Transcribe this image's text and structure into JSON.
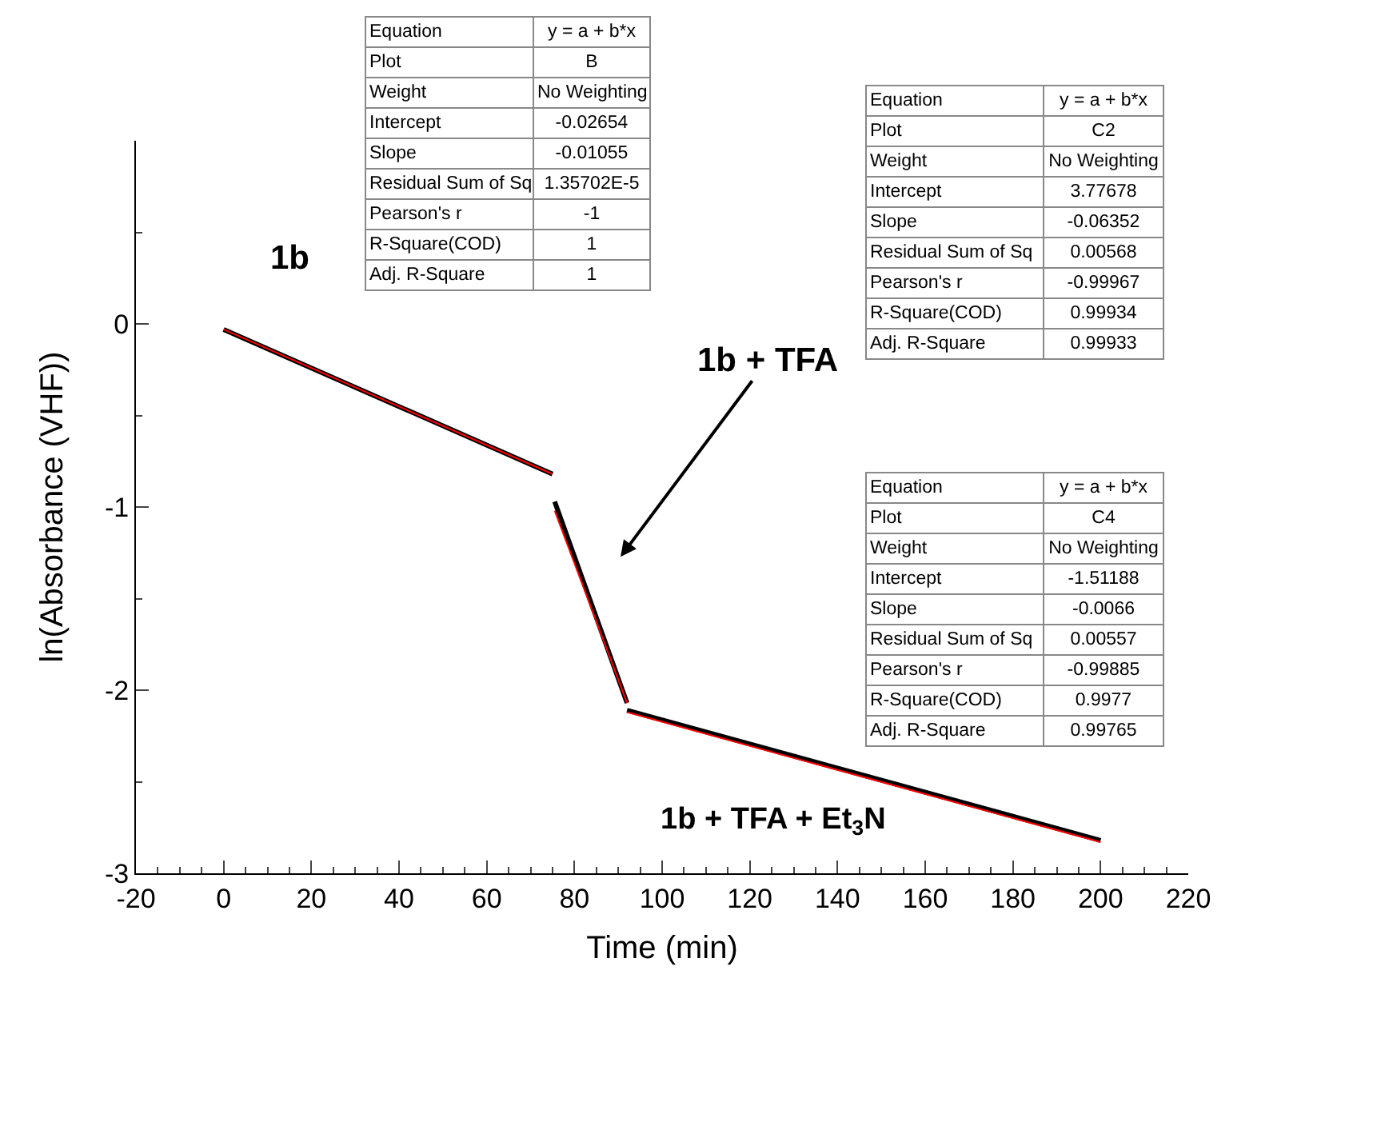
{
  "chart_data": {
    "type": "line",
    "xlabel": "Time (min)",
    "ylabel": "ln(Absorbance (VHF))",
    "xlim": [
      -20,
      220
    ],
    "xticks": [
      -20,
      0,
      20,
      40,
      60,
      80,
      100,
      120,
      140,
      160,
      180,
      200,
      220
    ],
    "ylim": [
      -3,
      1
    ],
    "yticks": [
      -3,
      -2,
      -1,
      0
    ],
    "line_style": "solid",
    "series": [
      {
        "color": "#000000",
        "x": [
          0,
          75
        ],
        "values": [
          -0.03,
          -0.82
        ]
      },
      {
        "color": "#000000",
        "x": [
          75.5,
          92
        ],
        "values": [
          -0.97,
          -2.07
        ]
      },
      {
        "color": "#000000",
        "x": [
          92,
          200
        ],
        "values": [
          -2.11,
          -2.82
        ]
      },
      {
        "color": "#ff0000",
        "x": [
          0,
          75
        ],
        "values": [
          -0.03,
          -0.82
        ]
      },
      {
        "color": "#ff0000",
        "x": [
          75.5,
          92
        ],
        "values": [
          -1.02,
          -2.07
        ]
      },
      {
        "color": "#ff0000",
        "x": [
          92,
          200
        ],
        "values": [
          -2.12,
          -2.83
        ]
      }
    ],
    "annotations": [
      "1b",
      "1b + TFA",
      "1b + TFA + Et$_{3}$N",
      "Equation",
      "y = a + b*x",
      "Plot",
      "B",
      "Weight",
      "No Weighting",
      "Intercept",
      "-0.02654",
      "Slope",
      "-0.01055",
      "Residual Sum of Sq",
      "1.35702E-5",
      "Pearson's r",
      "-1",
      "R-Square(COD)",
      "1",
      "Adj. R-Square",
      "1",
      "Equation",
      "y = a + b*x",
      "Plot",
      "C2",
      "Weight",
      "No Weighting",
      "Intercept",
      "3.77678",
      "Slope",
      "-0.06352",
      "Residual Sum of Sq",
      "0.00568",
      "Pearson's r",
      "-0.99967",
      "R-Square(COD)",
      "0.99934",
      "Adj. R-Square",
      "0.99933",
      "Equation",
      "y = a + b*x",
      "Plot",
      "C4",
      "Weight",
      "No Weighting",
      "Intercept",
      "-1.51188",
      "Slope",
      "-0.0066",
      "Residual Sum of Sq",
      "0.00557",
      "Pearson's r",
      "-0.99885",
      "R-Square(COD)",
      "0.9977",
      "Adj. R-Square",
      "0.99765"
    ]
  }
}
